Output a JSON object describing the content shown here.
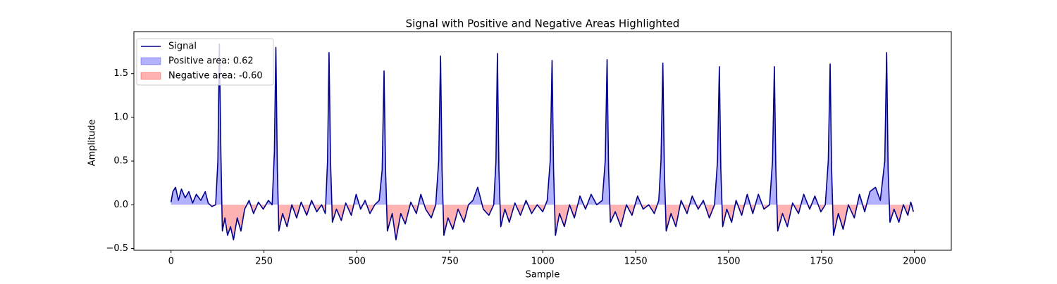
{
  "chart_data": {
    "type": "line",
    "title": "Signal with Positive and Negative Areas Highlighted",
    "xlabel": "Sample",
    "ylabel": "Amplitude",
    "x": [
      0,
      5,
      12,
      20,
      28,
      38,
      48,
      58,
      68,
      80,
      92,
      100,
      110,
      120,
      126,
      130,
      134,
      138,
      145,
      152,
      160,
      168,
      178,
      188,
      198,
      210,
      222,
      235,
      248,
      262,
      272,
      278,
      282,
      286,
      290,
      300,
      312,
      325,
      338,
      350,
      365,
      378,
      392,
      405,
      415,
      421,
      425,
      429,
      434,
      445,
      458,
      470,
      485,
      498,
      510,
      522,
      535,
      548,
      560,
      568,
      573,
      577,
      582,
      595,
      605,
      618,
      630,
      645,
      660,
      672,
      685,
      700,
      712,
      720,
      725,
      729,
      734,
      745,
      758,
      772,
      788,
      800,
      812,
      825,
      840,
      855,
      868,
      874,
      878,
      882,
      887,
      898,
      910,
      925,
      940,
      955,
      970,
      985,
      1000,
      1012,
      1020,
      1025,
      1029,
      1034,
      1045,
      1058,
      1072,
      1085,
      1100,
      1115,
      1130,
      1145,
      1160,
      1168,
      1173,
      1177,
      1182,
      1195,
      1210,
      1225,
      1240,
      1255,
      1270,
      1285,
      1300,
      1312,
      1318,
      1323,
      1327,
      1332,
      1345,
      1358,
      1372,
      1388,
      1402,
      1418,
      1432,
      1448,
      1462,
      1470,
      1475,
      1479,
      1484,
      1495,
      1508,
      1520,
      1535,
      1550,
      1565,
      1580,
      1595,
      1610,
      1618,
      1623,
      1627,
      1632,
      1645,
      1658,
      1672,
      1688,
      1702,
      1718,
      1732,
      1748,
      1760,
      1768,
      1773,
      1777,
      1782,
      1795,
      1808,
      1822,
      1838,
      1852,
      1866,
      1880,
      1895,
      1908,
      1920,
      1925,
      1929,
      1934,
      1945,
      1958,
      1970,
      1982,
      1990,
      1997
    ],
    "series": [
      {
        "name": "Signal",
        "color": "#00008b",
        "values": [
          0.03,
          0.15,
          0.2,
          0.05,
          0.18,
          0.08,
          0.15,
          0.02,
          0.12,
          0.05,
          0.15,
          0.02,
          -0.02,
          0.0,
          0.5,
          1.84,
          0.6,
          -0.3,
          -0.15,
          -0.35,
          -0.25,
          -0.4,
          -0.15,
          -0.3,
          -0.05,
          0.05,
          -0.1,
          0.03,
          -0.05,
          0.05,
          0.0,
          0.6,
          1.8,
          0.4,
          -0.3,
          -0.1,
          -0.25,
          0.0,
          -0.15,
          0.03,
          -0.12,
          0.05,
          -0.08,
          0.0,
          -0.1,
          0.5,
          1.74,
          0.5,
          -0.2,
          -0.05,
          -0.18,
          0.02,
          -0.12,
          0.12,
          -0.05,
          0.05,
          -0.1,
          0.0,
          0.05,
          0.4,
          1.53,
          0.4,
          -0.3,
          -0.1,
          -0.4,
          -0.1,
          -0.22,
          0.03,
          -0.1,
          0.12,
          -0.05,
          -0.15,
          0.0,
          0.5,
          1.7,
          0.4,
          -0.35,
          -0.15,
          -0.28,
          -0.05,
          -0.2,
          0.0,
          0.05,
          0.2,
          -0.05,
          -0.12,
          0.0,
          0.5,
          1.73,
          0.4,
          -0.25,
          -0.05,
          -0.2,
          0.02,
          -0.12,
          0.05,
          -0.1,
          0.0,
          -0.08,
          0.05,
          0.5,
          1.65,
          0.4,
          -0.35,
          -0.1,
          -0.25,
          0.0,
          -0.15,
          0.1,
          -0.05,
          0.12,
          0.0,
          0.05,
          0.5,
          1.66,
          0.4,
          -0.2,
          -0.08,
          -0.25,
          0.0,
          -0.12,
          0.1,
          -0.05,
          0.0,
          -0.1,
          0.05,
          0.5,
          1.62,
          0.4,
          -0.3,
          -0.1,
          -0.25,
          0.05,
          -0.1,
          0.1,
          -0.05,
          0.05,
          -0.15,
          0.0,
          0.5,
          1.58,
          0.4,
          -0.25,
          -0.05,
          -0.2,
          0.05,
          -0.12,
          0.12,
          -0.1,
          0.12,
          -0.05,
          0.0,
          0.5,
          1.58,
          0.4,
          -0.3,
          -0.1,
          -0.25,
          0.02,
          -0.1,
          0.12,
          -0.05,
          0.1,
          -0.08,
          0.0,
          0.5,
          1.61,
          0.4,
          -0.35,
          -0.1,
          -0.28,
          0.0,
          -0.15,
          0.12,
          -0.08,
          0.15,
          0.2,
          0.05,
          0.5,
          1.74,
          0.4,
          -0.2,
          -0.05,
          -0.2,
          0.0,
          -0.12,
          0.03,
          -0.08
        ]
      }
    ],
    "fills": [
      {
        "name": "Positive area: 0.62",
        "color": "#0000ff",
        "where": "above"
      },
      {
        "name": "Negative area: -0.60",
        "color": "#ff0000",
        "where": "below"
      }
    ],
    "xlim": [
      -99.95,
      2098.95
    ],
    "xticks": [
      0,
      250,
      500,
      750,
      1000,
      1250,
      1500,
      1750,
      2000
    ],
    "ylim": [
      -0.52,
      1.98
    ],
    "yticks": [
      {
        "value": -0.5,
        "label": "−0.5"
      },
      {
        "value": 0,
        "label": "0.0"
      },
      0.5,
      {
        "value": 1,
        "label": "1.0"
      },
      1.5
    ],
    "legend": "upper left"
  }
}
